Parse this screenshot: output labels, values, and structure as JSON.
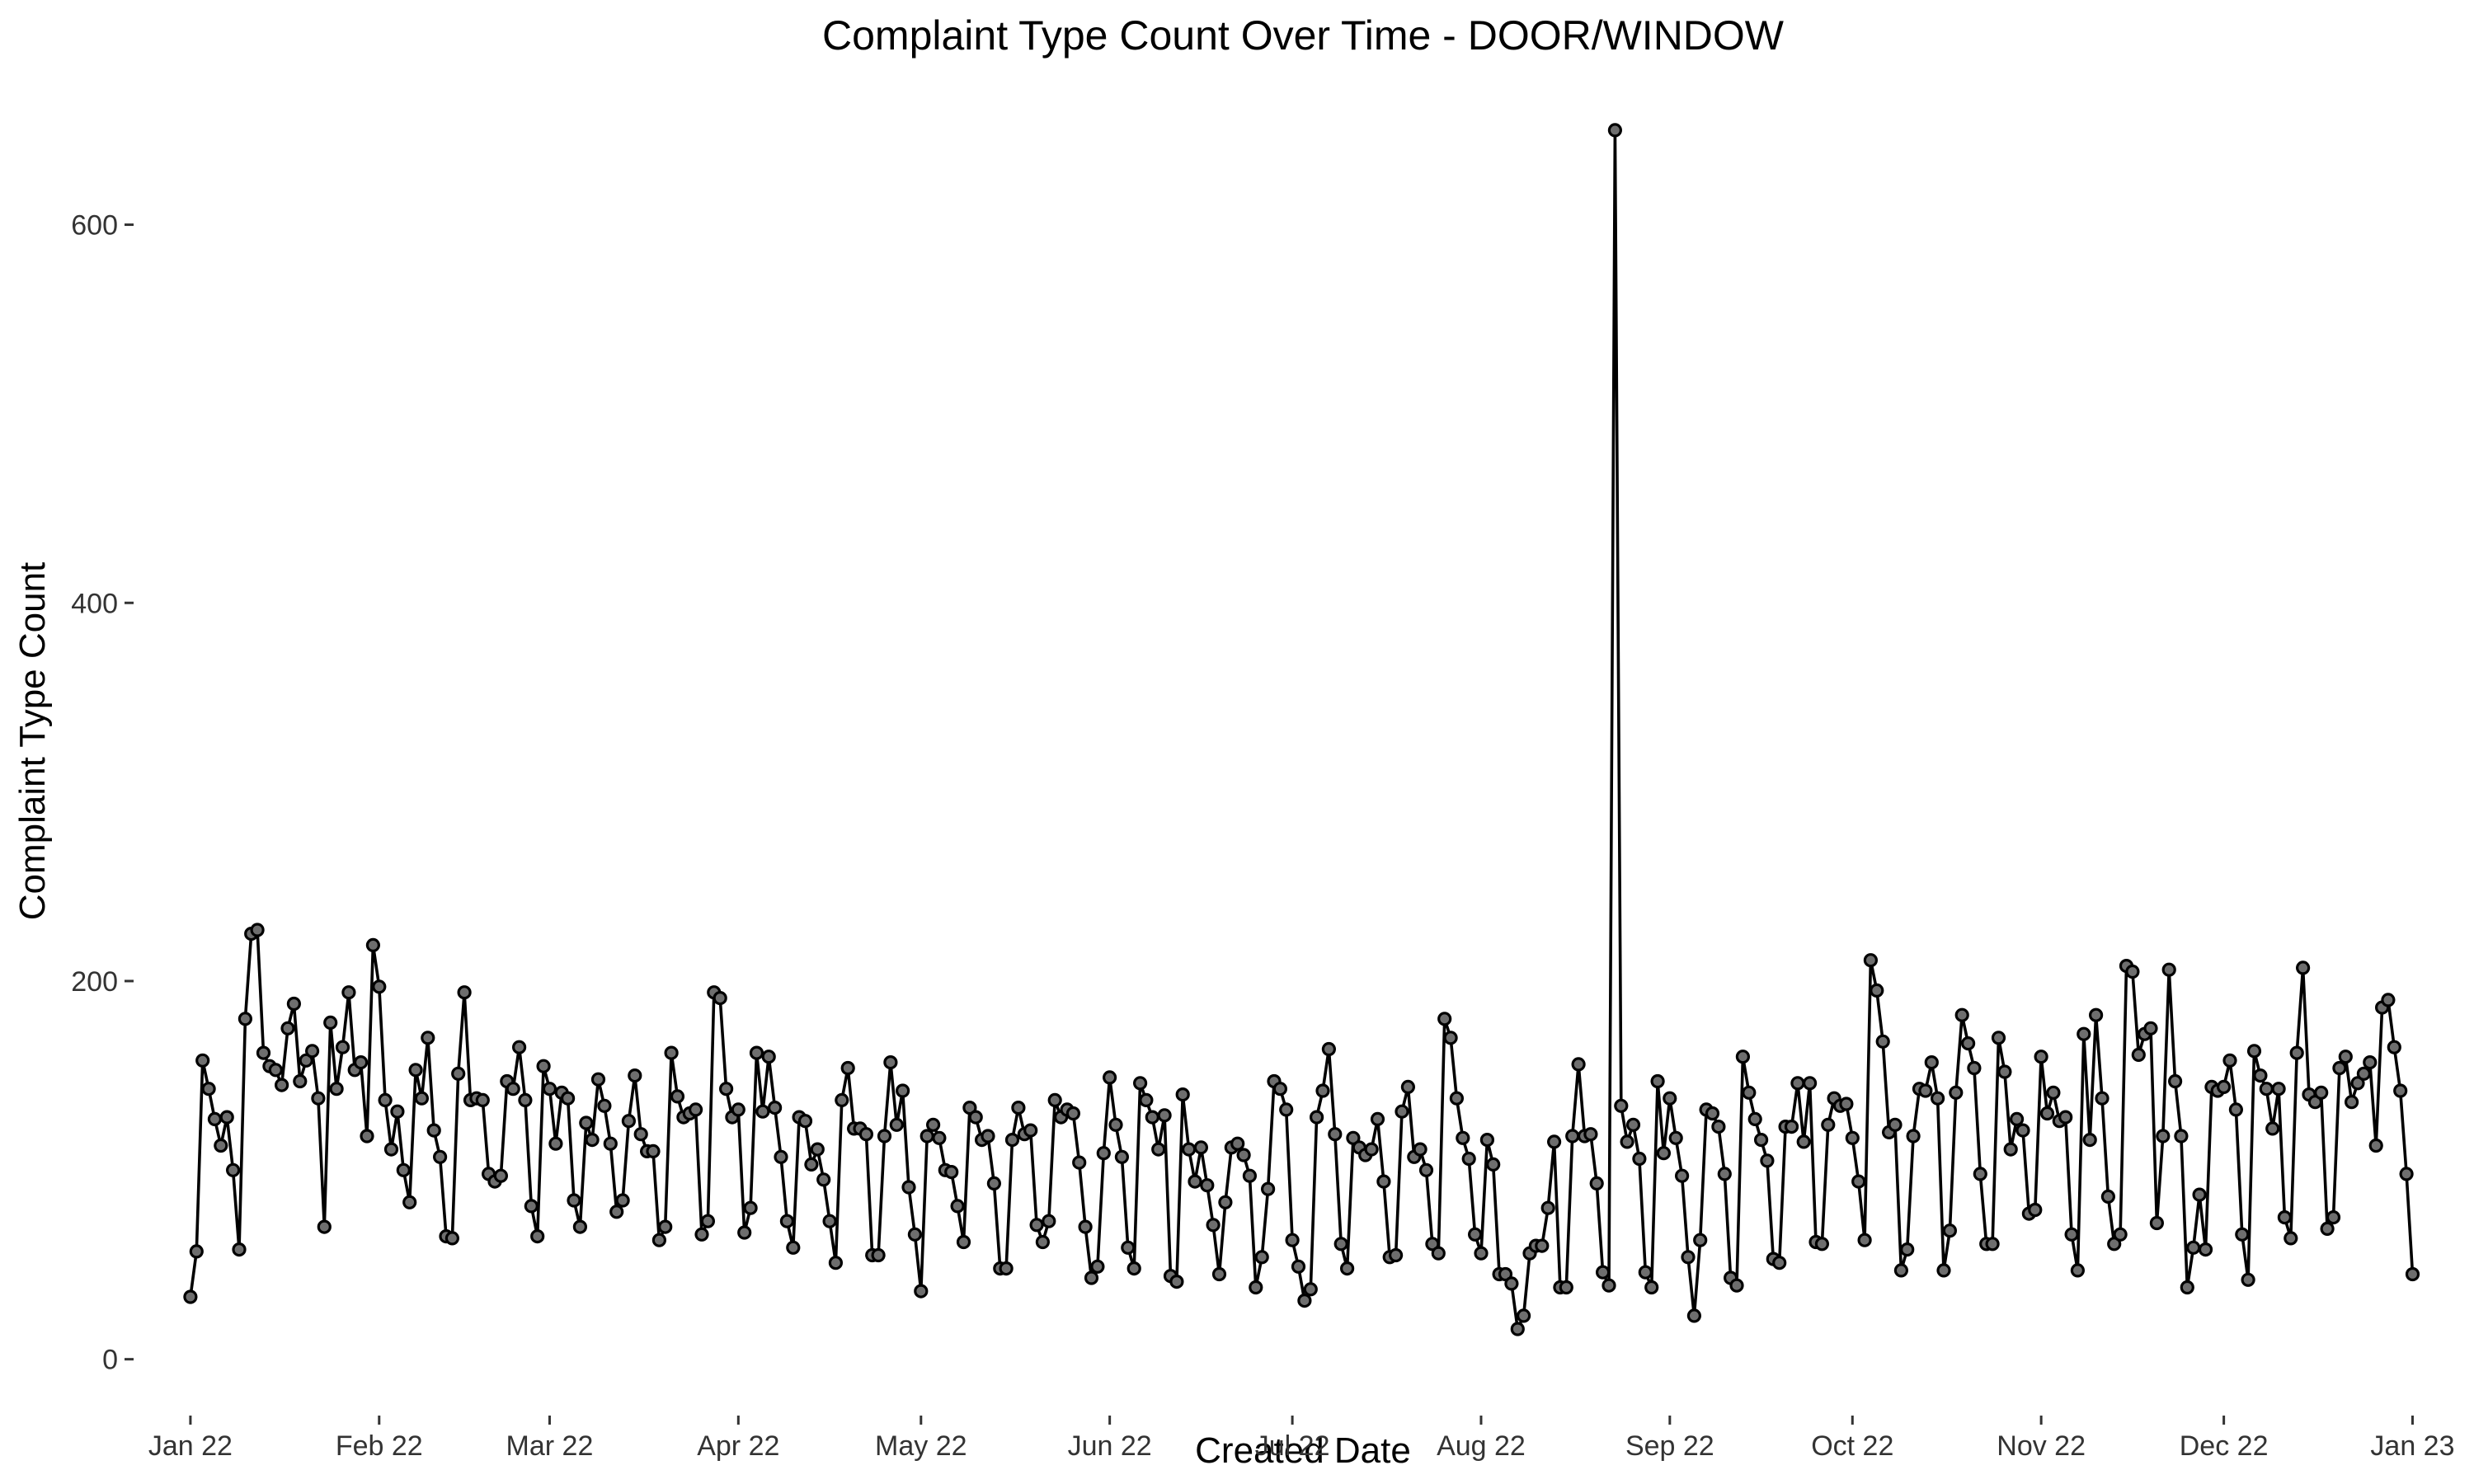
{
  "chart_data": {
    "type": "line",
    "title": "Complaint Type Count Over Time - DOOR/WINDOW",
    "xlabel": "Created Date",
    "ylabel": "Complaint Type Count",
    "x_start_date": "2022-01-01",
    "x_end_date": "2022-12-31",
    "xlim_days": [
      -5,
      369
    ],
    "ylim": [
      -25,
      670
    ],
    "grid": false,
    "legend": "none",
    "y_ticks": [
      {
        "value": 0,
        "label": "0"
      },
      {
        "value": 200,
        "label": "200"
      },
      {
        "value": 400,
        "label": "400"
      },
      {
        "value": 600,
        "label": "600"
      }
    ],
    "x_ticks": [
      {
        "day": 0,
        "label": "Jan 22"
      },
      {
        "day": 31,
        "label": "Feb 22"
      },
      {
        "day": 59,
        "label": "Mar 22"
      },
      {
        "day": 90,
        "label": "Apr 22"
      },
      {
        "day": 120,
        "label": "May 22"
      },
      {
        "day": 151,
        "label": "Jun 22"
      },
      {
        "day": 181,
        "label": "Jul 22"
      },
      {
        "day": 212,
        "label": "Aug 22"
      },
      {
        "day": 243,
        "label": "Sep 22"
      },
      {
        "day": 273,
        "label": "Oct 22"
      },
      {
        "day": 304,
        "label": "Nov 22"
      },
      {
        "day": 334,
        "label": "Dec 22"
      },
      {
        "day": 365,
        "label": "Jan 23"
      }
    ],
    "series": [
      {
        "name": "DOOR/WINDOW",
        "values": [
          33,
          57,
          158,
          143,
          127,
          113,
          128,
          100,
          58,
          180,
          225,
          227,
          162,
          155,
          153,
          145,
          175,
          188,
          147,
          158,
          163,
          138,
          70,
          178,
          143,
          165,
          194,
          153,
          157,
          118,
          219,
          197,
          137,
          111,
          131,
          100,
          83,
          153,
          138,
          170,
          121,
          107,
          65,
          64,
          151,
          194,
          137,
          138,
          137,
          98,
          94,
          97,
          147,
          143,
          165,
          137,
          81,
          65,
          155,
          143,
          114,
          141,
          138,
          84,
          70,
          125,
          116,
          148,
          134,
          114,
          78,
          84,
          126,
          150,
          119,
          110,
          110,
          63,
          70,
          162,
          139,
          128,
          130,
          132,
          66,
          73,
          194,
          191,
          143,
          128,
          132,
          67,
          80,
          162,
          131,
          160,
          133,
          107,
          73,
          59,
          128,
          126,
          103,
          111,
          95,
          73,
          51,
          137,
          154,
          122,
          122,
          119,
          55,
          55,
          118,
          157,
          124,
          142,
          91,
          66,
          36,
          118,
          124,
          117,
          100,
          99,
          81,
          62,
          133,
          128,
          116,
          118,
          93,
          48,
          48,
          116,
          133,
          119,
          121,
          71,
          62,
          73,
          137,
          128,
          132,
          130,
          104,
          70,
          43,
          49,
          109,
          149,
          124,
          107,
          59,
          48,
          146,
          137,
          128,
          111,
          129,
          44,
          41,
          140,
          111,
          94,
          112,
          92,
          71,
          45,
          83,
          112,
          114,
          108,
          97,
          38,
          54,
          90,
          147,
          143,
          132,
          63,
          49,
          31,
          37,
          128,
          142,
          164,
          119,
          61,
          48,
          117,
          112,
          108,
          111,
          127,
          94,
          54,
          55,
          131,
          144,
          107,
          111,
          100,
          61,
          56,
          180,
          170,
          138,
          117,
          106,
          66,
          56,
          116,
          103,
          45,
          45,
          40,
          16,
          23,
          56,
          60,
          60,
          80,
          115,
          38,
          38,
          118,
          156,
          118,
          119,
          93,
          46,
          39,
          650,
          134,
          115,
          124,
          106,
          46,
          38,
          147,
          109,
          138,
          117,
          97,
          54,
          23,
          63,
          132,
          130,
          123,
          98,
          43,
          39,
          160,
          141,
          127,
          116,
          105,
          53,
          51,
          123,
          123,
          146,
          115,
          146,
          62,
          61,
          124,
          138,
          134,
          135,
          117,
          94,
          63,
          211,
          195,
          168,
          120,
          124,
          47,
          58,
          118,
          143,
          142,
          157,
          138,
          47,
          68,
          141,
          182,
          167,
          154,
          98,
          61,
          61,
          170,
          152,
          111,
          127,
          121,
          77,
          79,
          160,
          130,
          141,
          126,
          128,
          66,
          47,
          172,
          116,
          182,
          138,
          86,
          61,
          66,
          208,
          205,
          161,
          172,
          175,
          72,
          118,
          206,
          147,
          118,
          38,
          59,
          87,
          58,
          144,
          142,
          144,
          158,
          132,
          66,
          42,
          163,
          150,
          143,
          122,
          143,
          75,
          64,
          162,
          207,
          140,
          136,
          141,
          69,
          75,
          154,
          160,
          136,
          146,
          151,
          157,
          113,
          186,
          190,
          165,
          142,
          98,
          45
        ]
      }
    ]
  }
}
